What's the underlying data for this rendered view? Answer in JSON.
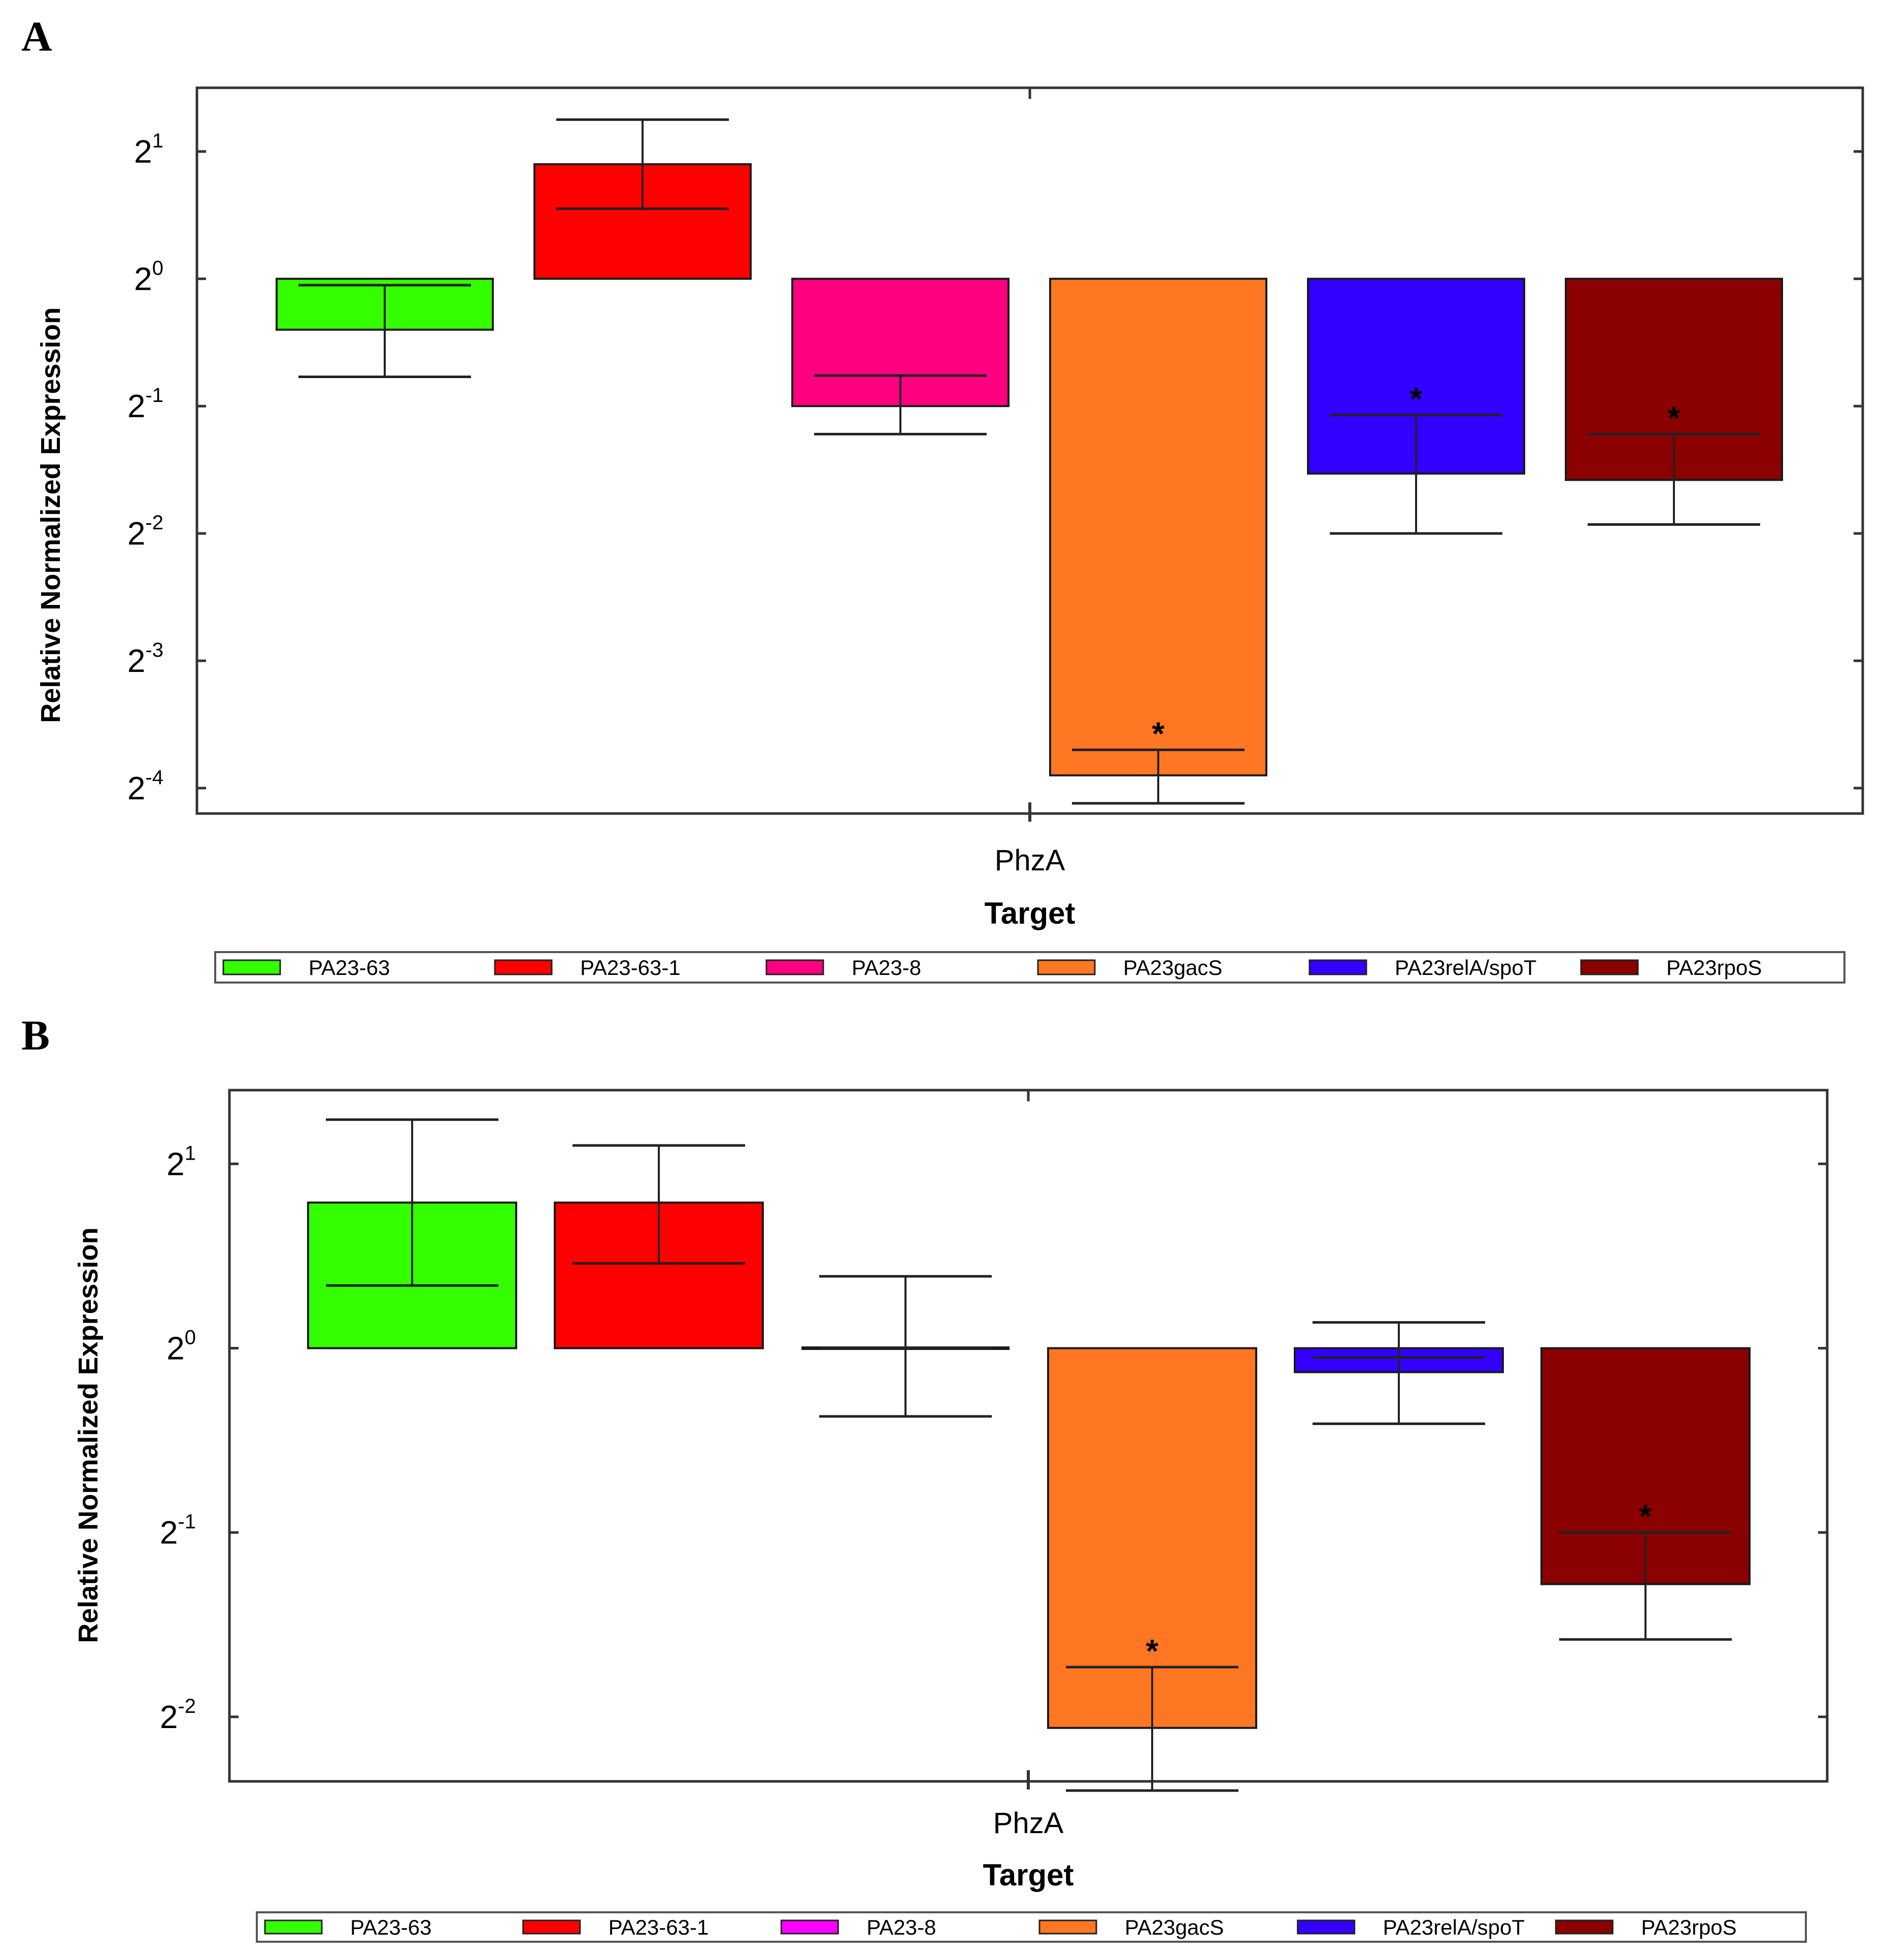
{
  "chart_data": [
    {
      "panel": "A",
      "type": "bar",
      "xlabel": "Target",
      "ylabel": "Relative Normalized Expression",
      "yscale": "log2",
      "ylim_exp": [
        -4.2,
        1.5
      ],
      "yticks": [
        {
          "base": "2",
          "exp": "1",
          "value": 1
        },
        {
          "base": "2",
          "exp": "0",
          "value": 0
        },
        {
          "base": "2",
          "exp": "-1",
          "value": -1
        },
        {
          "base": "2",
          "exp": "-2",
          "value": -2
        },
        {
          "base": "2",
          "exp": "-3",
          "value": -3
        },
        {
          "base": "2",
          "exp": "-4",
          "value": -4
        }
      ],
      "categories": [
        "PhzA"
      ],
      "series": [
        {
          "name": "PA23-63",
          "color": "#33ff00",
          "bar_exp": -0.4,
          "err_mid_exp": -0.05,
          "err_low_exp": -0.77,
          "err_high_exp": -0.05,
          "significant": false
        },
        {
          "name": "PA23-63-1",
          "color": "#ff0000",
          "bar_exp": 0.9,
          "err_mid_exp": 0.55,
          "err_low_exp": 0.55,
          "err_high_exp": 1.25,
          "significant": false
        },
        {
          "name": "PA23-8",
          "color": "#ff0080",
          "bar_exp": -1.0,
          "err_mid_exp": -0.76,
          "err_low_exp": -1.22,
          "err_high_exp": -0.76,
          "significant": false
        },
        {
          "name": "PA23gacS",
          "color": "#ff7722",
          "bar_exp": -3.9,
          "err_mid_exp": -3.7,
          "err_low_exp": -4.12,
          "err_high_exp": -3.7,
          "significant": true
        },
        {
          "name": "PA23relA/spoT",
          "color": "#3300ff",
          "bar_exp": -1.53,
          "err_mid_exp": -1.07,
          "err_low_exp": -2.0,
          "err_high_exp": -1.07,
          "significant": true
        },
        {
          "name": "PA23rpoS",
          "color": "#8b0000",
          "bar_exp": -1.58,
          "err_mid_exp": -1.22,
          "err_low_exp": -1.93,
          "err_high_exp": -1.22,
          "significant": true
        }
      ]
    },
    {
      "panel": "B",
      "type": "bar",
      "xlabel": "Target",
      "ylabel": "Relative Normalized Expression",
      "yscale": "log2",
      "ylim_exp": [
        -2.35,
        1.4
      ],
      "yticks": [
        {
          "base": "2",
          "exp": "1",
          "value": 1
        },
        {
          "base": "2",
          "exp": "0",
          "value": 0
        },
        {
          "base": "2",
          "exp": "-1",
          "value": -1
        },
        {
          "base": "2",
          "exp": "-2",
          "value": -2
        }
      ],
      "categories": [
        "PhzA"
      ],
      "series": [
        {
          "name": "PA23-63",
          "color": "#33ff00",
          "bar_exp": 0.79,
          "err_mid_exp": 0.34,
          "err_low_exp": 0.34,
          "err_high_exp": 1.24,
          "significant": false
        },
        {
          "name": "PA23-63-1",
          "color": "#ff0000",
          "bar_exp": 0.79,
          "err_mid_exp": 0.46,
          "err_low_exp": 0.46,
          "err_high_exp": 1.1,
          "significant": false
        },
        {
          "name": "PA23-8",
          "color": "#ff00ff",
          "bar_exp": 0.0,
          "err_mid_exp": 0.0,
          "err_low_exp": -0.37,
          "err_high_exp": 0.39,
          "significant": false
        },
        {
          "name": "PA23gacS",
          "color": "#ff7722",
          "bar_exp": -2.06,
          "err_mid_exp": -1.73,
          "err_low_exp": -2.4,
          "err_high_exp": -1.73,
          "significant": true
        },
        {
          "name": "PA23relA/spoT",
          "color": "#3300ff",
          "bar_exp": -0.13,
          "err_mid_exp": -0.05,
          "err_low_exp": -0.41,
          "err_high_exp": 0.14,
          "significant": false
        },
        {
          "name": "PA23rpoS",
          "color": "#8b0000",
          "bar_exp": -1.28,
          "err_mid_exp": -1.0,
          "err_low_exp": -1.58,
          "err_high_exp": -1.0,
          "significant": true
        }
      ]
    }
  ]
}
